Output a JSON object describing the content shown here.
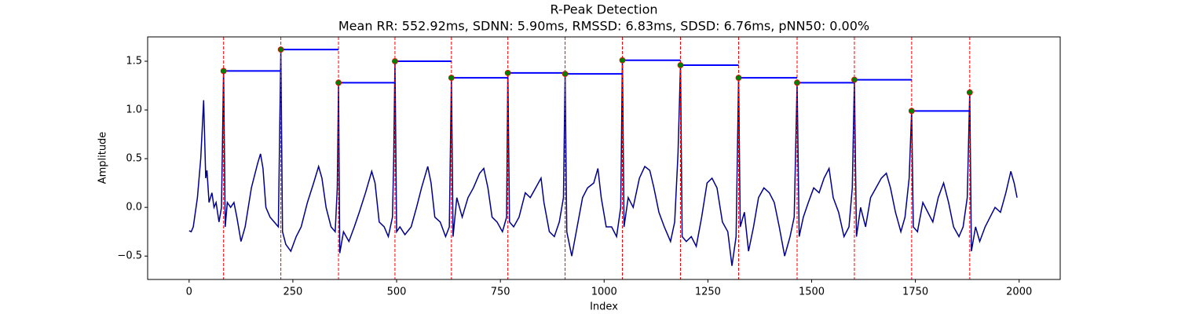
{
  "chart_data": {
    "type": "line",
    "title": "R-Peak Detection",
    "subtitle": "Mean RR: 552.92ms, SDNN: 5.90ms, RMSSD: 6.83ms, SDSD: 6.76ms, pNN50: 0.00%",
    "x_label": "Index",
    "y_label": "Amplitude",
    "xlim": [
      -99.95,
      2098.95
    ],
    "ylim": [
      -0.74,
      1.75
    ],
    "xticks": [
      0,
      250,
      500,
      750,
      1000,
      1250,
      1500,
      1750,
      2000
    ],
    "yticks": [
      {
        "value": -0.5,
        "label": "−0.5"
      },
      {
        "value": 0,
        "label": "0.0"
      },
      0.5,
      {
        "value": 1,
        "label": "1.0"
      },
      1.5
    ],
    "signal": {
      "color": "#00008b",
      "x": [
        0,
        5,
        10,
        20,
        28,
        35,
        40,
        43,
        48,
        55,
        60,
        65,
        72,
        78,
        83,
        87,
        92,
        100,
        108,
        115,
        125,
        135,
        150,
        165,
        172,
        178,
        185,
        195,
        205,
        215,
        221,
        225,
        233,
        245,
        258,
        270,
        285,
        300,
        312,
        320,
        330,
        342,
        352,
        357,
        360,
        363,
        372,
        385,
        398,
        410,
        425,
        440,
        448,
        458,
        470,
        480,
        490,
        493,
        496,
        500,
        508,
        520,
        535,
        548,
        560,
        575,
        583,
        592,
        605,
        618,
        627,
        632,
        636,
        645,
        658,
        672,
        685,
        700,
        710,
        720,
        730,
        742,
        755,
        765,
        768,
        772,
        782,
        795,
        810,
        822,
        835,
        848,
        855,
        868,
        880,
        892,
        902,
        906,
        910,
        922,
        935,
        948,
        960,
        975,
        985,
        993,
        1005,
        1018,
        1030,
        1040,
        1044,
        1048,
        1058,
        1070,
        1085,
        1098,
        1110,
        1120,
        1132,
        1145,
        1160,
        1170,
        1178,
        1184,
        1188,
        1198,
        1210,
        1222,
        1235,
        1248,
        1260,
        1272,
        1285,
        1298,
        1308,
        1318,
        1324,
        1328,
        1338,
        1348,
        1360,
        1372,
        1385,
        1398,
        1410,
        1422,
        1435,
        1448,
        1458,
        1465,
        1470,
        1480,
        1492,
        1505,
        1518,
        1530,
        1542,
        1552,
        1565,
        1578,
        1590,
        1598,
        1603,
        1608,
        1618,
        1630,
        1642,
        1655,
        1668,
        1680,
        1690,
        1702,
        1715,
        1725,
        1735,
        1741,
        1745,
        1755,
        1768,
        1780,
        1792,
        1805,
        1818,
        1830,
        1842,
        1855,
        1865,
        1875,
        1881,
        1885,
        1895,
        1905,
        1918,
        1930,
        1942,
        1955,
        1968,
        1980,
        1988,
        1995
      ],
      "values": [
        -0.24,
        -0.25,
        -0.2,
        0.1,
        0.5,
        1.1,
        0.3,
        0.38,
        0.05,
        0.15,
        0.0,
        0.05,
        -0.15,
        0.0,
        1.4,
        -0.2,
        0.05,
        0.0,
        0.05,
        -0.1,
        -0.35,
        -0.2,
        0.2,
        0.45,
        0.55,
        0.4,
        0.0,
        -0.1,
        -0.15,
        -0.2,
        1.62,
        -0.25,
        -0.38,
        -0.45,
        -0.3,
        -0.2,
        0.05,
        0.25,
        0.42,
        0.3,
        0.0,
        -0.2,
        -0.25,
        0.2,
        1.28,
        -0.47,
        -0.25,
        -0.35,
        -0.2,
        -0.05,
        0.15,
        0.37,
        0.25,
        -0.15,
        -0.2,
        -0.3,
        -0.1,
        0.5,
        1.5,
        -0.25,
        -0.2,
        -0.28,
        -0.2,
        0.0,
        0.2,
        0.42,
        0.25,
        -0.1,
        -0.15,
        -0.3,
        -0.2,
        1.33,
        -0.3,
        0.1,
        -0.1,
        0.1,
        0.2,
        0.35,
        0.4,
        0.2,
        -0.1,
        -0.15,
        -0.25,
        -0.1,
        1.38,
        -0.15,
        -0.2,
        -0.1,
        0.15,
        0.1,
        0.2,
        0.3,
        0.05,
        -0.25,
        -0.3,
        -0.15,
        0.1,
        1.37,
        -0.25,
        -0.5,
        -0.2,
        0.1,
        0.2,
        0.25,
        0.4,
        0.1,
        -0.2,
        -0.2,
        -0.3,
        0.0,
        1.51,
        -0.2,
        0.1,
        0.0,
        0.3,
        0.42,
        0.38,
        0.2,
        -0.05,
        -0.2,
        -0.35,
        -0.15,
        0.55,
        1.46,
        -0.3,
        -0.35,
        -0.3,
        -0.4,
        -0.1,
        0.25,
        0.3,
        0.2,
        -0.15,
        -0.25,
        -0.6,
        -0.3,
        1.33,
        -0.2,
        -0.05,
        -0.45,
        -0.2,
        0.1,
        0.2,
        0.15,
        0.05,
        -0.2,
        -0.5,
        -0.3,
        -0.1,
        1.28,
        -0.3,
        -0.1,
        0.05,
        0.2,
        0.15,
        0.3,
        0.4,
        0.1,
        -0.05,
        -0.3,
        -0.2,
        0.2,
        1.31,
        -0.3,
        0.0,
        -0.2,
        0.1,
        0.2,
        0.3,
        0.35,
        0.2,
        -0.05,
        -0.25,
        -0.1,
        0.3,
        0.99,
        -0.2,
        -0.25,
        0.05,
        -0.05,
        -0.15,
        0.1,
        0.25,
        0.05,
        -0.2,
        -0.3,
        -0.2,
        0.1,
        1.18,
        -0.45,
        -0.2,
        -0.35,
        -0.2,
        -0.1,
        0.0,
        -0.05,
        0.15,
        0.37,
        0.25,
        0.1
      ]
    },
    "peaks": {
      "color": "#008000",
      "edge_color": "#ff0000",
      "x": [
        83,
        221,
        360,
        496,
        632,
        768,
        906,
        1044,
        1184,
        1324,
        1465,
        1603,
        1741,
        1881
      ],
      "values": [
        1.4,
        1.62,
        1.28,
        1.5,
        1.33,
        1.38,
        1.37,
        1.51,
        1.46,
        1.33,
        1.28,
        1.31,
        0.99,
        1.18
      ]
    },
    "peak_line_color": "#ff0000",
    "interval_color": "#0000ff"
  }
}
